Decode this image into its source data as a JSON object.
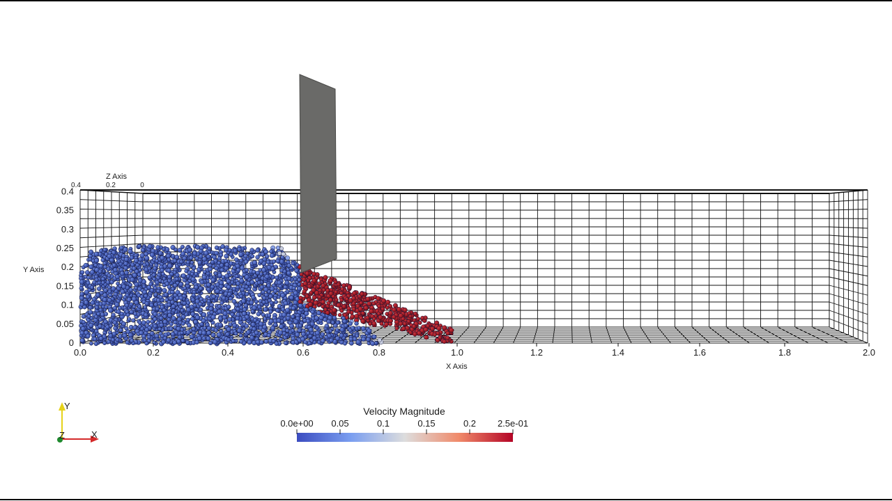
{
  "axes": {
    "x": {
      "title": "X Axis",
      "ticks": [
        "0.0",
        "0.2",
        "0.4",
        "0.6",
        "0.8",
        "1.0",
        "1.2",
        "1.4",
        "1.6",
        "1.8",
        "2.0"
      ]
    },
    "y": {
      "title": "Y Axis",
      "ticks": [
        "0",
        "0.05",
        "0.1",
        "0.15",
        "0.2",
        "0.25",
        "0.3",
        "0.35",
        "0.4"
      ]
    },
    "z": {
      "title": "Z Axis",
      "ticks": [
        "0.4",
        "0.2",
        "0"
      ]
    }
  },
  "colorbar": {
    "title": "Velocity Magnitude",
    "ticks": [
      "0.0e+00",
      "0.05",
      "0.1",
      "0.15",
      "0.2",
      "2.5e-01"
    ],
    "range": [
      0,
      0.25
    ],
    "colors": {
      "low": "#3b4cc0",
      "mid": "#dddddd",
      "high": "#b40426"
    }
  },
  "orientation_triad": {
    "labels": [
      "Y",
      "Z",
      "X"
    ],
    "colors": {
      "y": "#e6d21a",
      "x": "#d42a2a",
      "z": "#1f8a2e"
    }
  },
  "colors": {
    "particle_slow": "#3a56b8",
    "particle_fast": "#a8141e",
    "gate": "#6a6a68",
    "grid": "#111111"
  }
}
